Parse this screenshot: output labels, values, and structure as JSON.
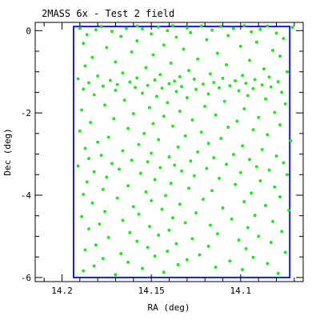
{
  "chart_data": {
    "type": "scatter",
    "title": "2MASS 6x - Test 2 field",
    "xlabel": "RA (deg)",
    "ylabel": "Dec (deg)",
    "xlim": [
      14.215,
      14.065
    ],
    "ylim": [
      -6.1,
      0.2
    ],
    "x_ticks": [
      "14.2",
      "14.15",
      "14.1"
    ],
    "y_ticks": [
      "0",
      "-2",
      "-4",
      "-6"
    ],
    "x_tick_values": [
      14.2,
      14.15,
      14.1
    ],
    "y_tick_values": [
      0,
      -2,
      -4,
      -6
    ],
    "grid": false,
    "marker_color": "#22ee22",
    "field_outline_color": "#1a1acc",
    "field_outline": {
      "ra": [
        14.1935,
        14.1935,
        14.0725,
        14.0725,
        14.0725,
        14.1935
      ],
      "dec": [
        0.1,
        -6.0,
        -6.0,
        0.1,
        0.1,
        0.1
      ]
    },
    "star_points": [
      [
        14.138,
        0.12
      ],
      [
        14.098,
        0.12
      ],
      [
        14.158,
        0.11
      ],
      [
        14.122,
        0.11
      ],
      [
        14.085,
        0.11
      ],
      [
        14.178,
        0.1
      ],
      [
        14.111,
        0.1
      ],
      [
        14.146,
        0.09
      ],
      [
        14.071,
        0.08
      ],
      [
        14.13,
        0.07
      ],
      [
        14.19,
        0.06
      ],
      [
        14.104,
        0.05
      ],
      [
        14.164,
        0.05
      ],
      [
        14.155,
        0.04
      ],
      [
        14.089,
        0.03
      ],
      [
        14.181,
        0.02
      ],
      [
        14.116,
        0.01
      ],
      [
        14.141,
        0.0
      ],
      [
        14.172,
        -0.02
      ],
      [
        14.094,
        -0.03
      ],
      [
        14.128,
        -0.05
      ],
      [
        14.08,
        -0.06
      ],
      [
        14.15,
        -0.08
      ],
      [
        14.186,
        -0.1
      ],
      [
        14.107,
        -0.12
      ],
      [
        14.167,
        -0.14
      ],
      [
        14.136,
        -0.16
      ],
      [
        14.076,
        -0.19
      ],
      [
        14.119,
        -0.22
      ],
      [
        14.158,
        -0.25
      ],
      [
        14.091,
        -0.28
      ],
      [
        14.188,
        -0.31
      ],
      [
        14.143,
        -0.35
      ],
      [
        14.1,
        -0.38
      ],
      [
        14.175,
        -0.41
      ],
      [
        14.132,
        -0.45
      ],
      [
        14.082,
        -0.48
      ],
      [
        14.161,
        -0.52
      ],
      [
        14.113,
        -0.55
      ],
      [
        14.149,
        -0.59
      ],
      [
        14.078,
        -0.62
      ],
      [
        14.183,
        -0.65
      ],
      [
        14.124,
        -0.69
      ],
      [
        14.095,
        -0.72
      ],
      [
        14.17,
        -0.76
      ],
      [
        14.139,
        -0.79
      ],
      [
        14.108,
        -0.83
      ],
      [
        14.187,
        -0.86
      ],
      [
        14.153,
        -0.9
      ],
      [
        14.087,
        -0.93
      ],
      [
        14.129,
        -0.97
      ],
      [
        14.074,
        -1.0
      ],
      [
        14.166,
        -1.03
      ],
      [
        14.117,
        -1.05
      ],
      [
        14.145,
        -1.07
      ],
      [
        14.099,
        -1.09
      ],
      [
        14.18,
        -1.1
      ],
      [
        14.134,
        -1.12
      ],
      [
        14.084,
        -1.13
      ],
      [
        14.158,
        -1.15
      ],
      [
        14.11,
        -1.16
      ],
      [
        14.191,
        -1.17
      ],
      [
        14.126,
        -1.18
      ],
      [
        14.092,
        -1.19
      ],
      [
        14.148,
        -1.2
      ],
      [
        14.173,
        -1.21
      ],
      [
        14.103,
        -1.22
      ],
      [
        14.137,
        -1.23
      ],
      [
        14.079,
        -1.24
      ],
      [
        14.162,
        -1.25
      ],
      [
        14.115,
        -1.26
      ],
      [
        14.185,
        -1.27
      ],
      [
        14.097,
        -1.28
      ],
      [
        14.14,
        -1.29
      ],
      [
        14.121,
        -1.3
      ],
      [
        14.169,
        -1.31
      ],
      [
        14.088,
        -1.32
      ],
      [
        14.152,
        -1.33
      ],
      [
        14.106,
        -1.34
      ],
      [
        14.177,
        -1.35
      ],
      [
        14.133,
        -1.36
      ],
      [
        14.083,
        -1.37
      ],
      [
        14.159,
        -1.38
      ],
      [
        14.112,
        -1.39
      ],
      [
        14.144,
        -1.4
      ],
      [
        14.093,
        -1.41
      ],
      [
        14.188,
        -1.42
      ],
      [
        14.125,
        -1.43
      ],
      [
        14.17,
        -1.45
      ],
      [
        14.101,
        -1.46
      ],
      [
        14.136,
        -1.48
      ],
      [
        14.077,
        -1.5
      ],
      [
        14.155,
        -1.52
      ],
      [
        14.118,
        -1.54
      ],
      [
        14.182,
        -1.56
      ],
      [
        14.096,
        -1.58
      ],
      [
        14.147,
        -1.6
      ],
      [
        14.13,
        -1.63
      ],
      [
        14.086,
        -1.66
      ],
      [
        14.165,
        -1.69
      ],
      [
        14.109,
        -1.72
      ],
      [
        14.141,
        -1.75
      ],
      [
        14.075,
        -1.78
      ],
      [
        14.176,
        -1.81
      ],
      [
        14.12,
        -1.84
      ],
      [
        14.151,
        -1.87
      ],
      [
        14.098,
        -1.9
      ],
      [
        14.189,
        -1.93
      ],
      [
        14.134,
        -1.96
      ],
      [
        14.081,
        -1.99
      ],
      [
        14.16,
        -2.02
      ],
      [
        14.114,
        -2.05
      ],
      [
        14.143,
        -2.08
      ],
      [
        14.09,
        -2.11
      ],
      [
        14.171,
        -2.14
      ],
      [
        14.127,
        -2.17
      ],
      [
        14.102,
        -2.2
      ],
      [
        14.184,
        -2.23
      ],
      [
        14.149,
        -2.26
      ],
      [
        14.078,
        -2.29
      ],
      [
        14.138,
        -2.32
      ],
      [
        14.107,
        -2.35
      ],
      [
        14.163,
        -2.38
      ],
      [
        14.093,
        -2.41
      ],
      [
        14.19,
        -2.44
      ],
      [
        14.122,
        -2.47
      ],
      [
        14.154,
        -2.5
      ],
      [
        14.085,
        -2.53
      ],
      [
        14.131,
        -2.56
      ],
      [
        14.174,
        -2.59
      ],
      [
        14.111,
        -2.62
      ],
      [
        14.146,
        -2.65
      ],
      [
        14.072,
        -2.68
      ],
      [
        14.18,
        -2.71
      ],
      [
        14.118,
        -2.74
      ],
      [
        14.157,
        -2.77
      ],
      [
        14.099,
        -2.8
      ],
      [
        14.135,
        -2.83
      ],
      [
        14.187,
        -2.86
      ],
      [
        14.088,
        -2.89
      ],
      [
        14.166,
        -2.92
      ],
      [
        14.124,
        -2.95
      ],
      [
        14.15,
        -2.98
      ],
      [
        14.104,
        -3.01
      ],
      [
        14.178,
        -3.03
      ],
      [
        14.08,
        -3.05
      ],
      [
        14.14,
        -3.07
      ],
      [
        14.115,
        -3.09
      ],
      [
        14.185,
        -3.11
      ],
      [
        14.095,
        -3.13
      ],
      [
        14.161,
        -3.15
      ],
      [
        14.128,
        -3.17
      ],
      [
        14.152,
        -3.19
      ],
      [
        14.076,
        -3.21
      ],
      [
        14.172,
        -3.23
      ],
      [
        14.108,
        -3.25
      ],
      [
        14.137,
        -3.27
      ],
      [
        14.191,
        -3.29
      ],
      [
        14.091,
        -3.31
      ],
      [
        14.145,
        -3.33
      ],
      [
        14.119,
        -3.35
      ],
      [
        14.168,
        -3.37
      ],
      [
        14.084,
        -3.39
      ],
      [
        14.133,
        -3.41
      ],
      [
        14.182,
        -3.43
      ],
      [
        14.1,
        -3.45
      ],
      [
        14.156,
        -3.47
      ],
      [
        14.074,
        -3.5
      ],
      [
        14.126,
        -3.53
      ],
      [
        14.175,
        -3.56
      ],
      [
        14.112,
        -3.59
      ],
      [
        14.148,
        -3.62
      ],
      [
        14.089,
        -3.65
      ],
      [
        14.186,
        -3.68
      ],
      [
        14.139,
        -3.71
      ],
      [
        14.103,
        -3.74
      ],
      [
        14.163,
        -3.77
      ],
      [
        14.081,
        -3.8
      ],
      [
        14.129,
        -3.83
      ],
      [
        14.177,
        -3.86
      ],
      [
        14.116,
        -3.89
      ],
      [
        14.153,
        -3.92
      ],
      [
        14.094,
        -3.95
      ],
      [
        14.188,
        -3.98
      ],
      [
        14.142,
        -4.01
      ],
      [
        14.078,
        -4.04
      ],
      [
        14.169,
        -4.07
      ],
      [
        14.121,
        -4.1
      ],
      [
        14.15,
        -4.13
      ],
      [
        14.098,
        -4.16
      ],
      [
        14.183,
        -4.19
      ],
      [
        14.134,
        -4.22
      ],
      [
        14.086,
        -4.25
      ],
      [
        14.16,
        -4.28
      ],
      [
        14.11,
        -4.31
      ],
      [
        14.144,
        -4.34
      ],
      [
        14.073,
        -4.37
      ],
      [
        14.176,
        -4.4
      ],
      [
        14.125,
        -4.43
      ],
      [
        14.157,
        -4.46
      ],
      [
        14.092,
        -4.49
      ],
      [
        14.189,
        -4.52
      ],
      [
        14.138,
        -4.55
      ],
      [
        14.105,
        -4.58
      ],
      [
        14.166,
        -4.61
      ],
      [
        14.082,
        -4.64
      ],
      [
        14.131,
        -4.67
      ],
      [
        14.179,
        -4.7
      ],
      [
        14.117,
        -4.73
      ],
      [
        14.151,
        -4.76
      ],
      [
        14.096,
        -4.79
      ],
      [
        14.185,
        -4.82
      ],
      [
        14.14,
        -4.85
      ],
      [
        14.077,
        -4.88
      ],
      [
        14.162,
        -4.91
      ],
      [
        14.113,
        -4.94
      ],
      [
        14.146,
        -4.97
      ],
      [
        14.09,
        -5.0
      ],
      [
        14.174,
        -5.03
      ],
      [
        14.127,
        -5.06
      ],
      [
        14.101,
        -5.09
      ],
      [
        14.158,
        -5.12
      ],
      [
        14.083,
        -5.15
      ],
      [
        14.136,
        -5.18
      ],
      [
        14.181,
        -5.21
      ],
      [
        14.118,
        -5.24
      ],
      [
        14.152,
        -5.27
      ],
      [
        14.097,
        -5.3
      ],
      [
        14.187,
        -5.33
      ],
      [
        14.141,
        -5.36
      ],
      [
        14.075,
        -5.39
      ],
      [
        14.167,
        -5.42
      ],
      [
        14.123,
        -5.45
      ],
      [
        14.148,
        -5.48
      ],
      [
        14.093,
        -5.51
      ],
      [
        14.177,
        -5.54
      ],
      [
        14.13,
        -5.57
      ],
      [
        14.106,
        -5.6
      ],
      [
        14.163,
        -5.63
      ],
      [
        14.085,
        -5.66
      ],
      [
        14.135,
        -5.69
      ],
      [
        14.182,
        -5.72
      ],
      [
        14.114,
        -5.75
      ],
      [
        14.155,
        -5.78
      ],
      [
        14.099,
        -5.81
      ],
      [
        14.188,
        -5.84
      ],
      [
        14.143,
        -5.87
      ],
      [
        14.079,
        -5.9
      ],
      [
        14.17,
        -5.93
      ]
    ]
  }
}
